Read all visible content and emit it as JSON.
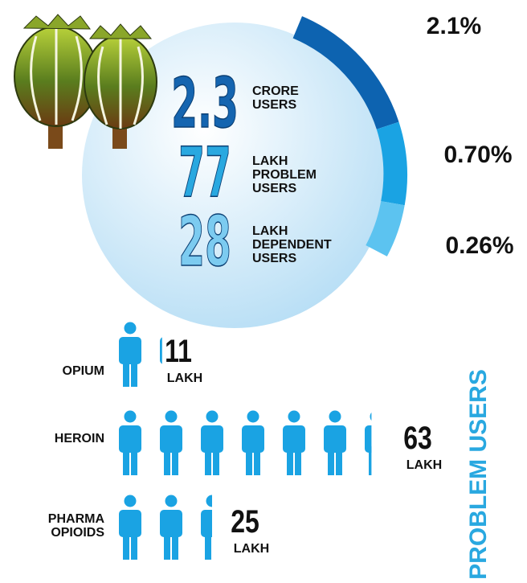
{
  "stats": [
    {
      "number": "2.3",
      "lines": [
        "CRORE",
        "USERS"
      ]
    },
    {
      "number": "77",
      "lines": [
        "LAKH",
        "PROBLEM",
        "USERS"
      ]
    },
    {
      "number": "28",
      "lines": [
        "LAKH",
        "DEPENDENT",
        "USERS"
      ]
    }
  ],
  "arc_labels": [
    "2.1%",
    "0.70%",
    "0.26%"
  ],
  "drugs": [
    {
      "name": [
        "OPIUM"
      ],
      "value": 11,
      "unit": "LAKH"
    },
    {
      "name": [
        "HEROIN"
      ],
      "value": 63,
      "unit": "LAKH"
    },
    {
      "name": [
        "PHARMA",
        "OPIOIDS"
      ],
      "value": 25,
      "unit": "LAKH"
    }
  ],
  "side_label": "PROBLEM USERS"
}
